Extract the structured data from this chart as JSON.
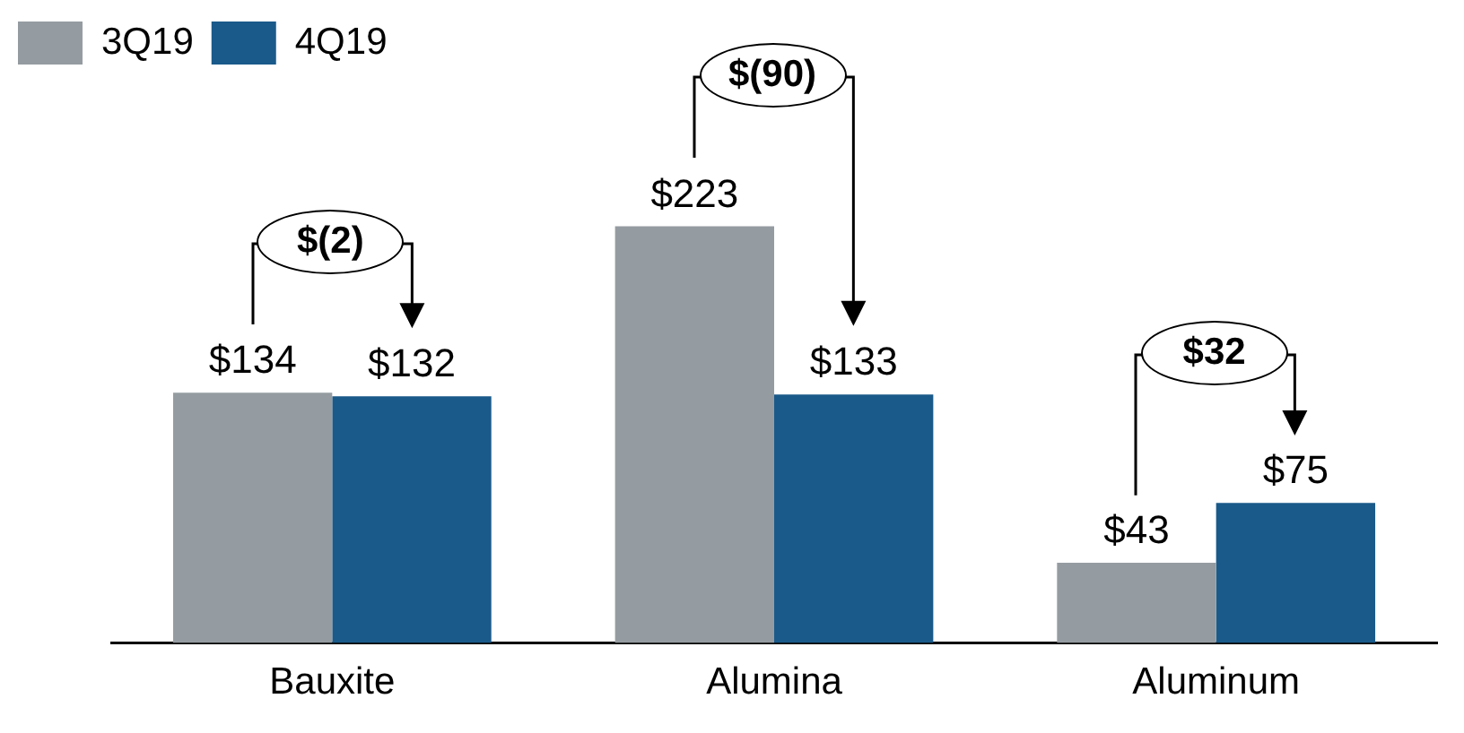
{
  "chart_data": {
    "type": "bar",
    "categories": [
      "Bauxite",
      "Alumina",
      "Aluminum"
    ],
    "series": [
      {
        "name": "3Q19",
        "color": "#959ca1",
        "values": [
          134,
          223,
          43
        ],
        "value_labels": [
          "$134",
          "$223",
          "$43"
        ]
      },
      {
        "name": "4Q19",
        "color": "#1a5a8a",
        "values": [
          132,
          133,
          75
        ],
        "value_labels": [
          "$132",
          "$133",
          "$75"
        ]
      }
    ],
    "legend": "top left",
    "grid": false,
    "annotations": [
      "$(2)",
      "$(90)",
      "$32"
    ]
  }
}
